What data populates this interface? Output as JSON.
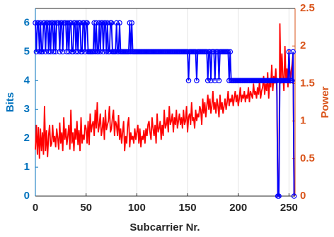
{
  "chart_data": {
    "type": "line",
    "xlabel": "Subcarrier Nr.",
    "ylabel": "Bits",
    "y2label": "Power",
    "y_axis_color": "#0072bd",
    "y2_axis_color": "#d95319",
    "grid": "x",
    "xlim": [
      0,
      256
    ],
    "xticks": [
      0,
      50,
      100,
      150,
      200,
      250
    ],
    "ylim": [
      0,
      6.5
    ],
    "yticks": [
      0,
      1,
      2,
      3,
      4,
      5,
      6
    ],
    "y2lim": [
      0,
      2.5
    ],
    "y2ticks": [
      0,
      0.5,
      1,
      1.5,
      2,
      2.5
    ],
    "x": [
      0,
      1,
      2,
      3,
      4,
      5,
      6,
      7,
      8,
      9,
      10,
      11,
      12,
      13,
      14,
      15,
      16,
      17,
      18,
      19,
      20,
      21,
      22,
      23,
      24,
      25,
      26,
      27,
      28,
      29,
      30,
      31,
      32,
      33,
      34,
      35,
      36,
      37,
      38,
      39,
      40,
      41,
      42,
      43,
      44,
      45,
      46,
      47,
      48,
      49,
      50,
      51,
      52,
      53,
      54,
      55,
      56,
      57,
      58,
      59,
      60,
      61,
      62,
      63,
      64,
      65,
      66,
      67,
      68,
      69,
      70,
      71,
      72,
      73,
      74,
      75,
      76,
      77,
      78,
      79,
      80,
      81,
      82,
      83,
      84,
      85,
      86,
      87,
      88,
      89,
      90,
      91,
      92,
      93,
      94,
      95,
      96,
      97,
      98,
      99,
      100,
      101,
      102,
      103,
      104,
      105,
      106,
      107,
      108,
      109,
      110,
      111,
      112,
      113,
      114,
      115,
      116,
      117,
      118,
      119,
      120,
      121,
      122,
      123,
      124,
      125,
      126,
      127,
      128,
      129,
      130,
      131,
      132,
      133,
      134,
      135,
      136,
      137,
      138,
      139,
      140,
      141,
      142,
      143,
      144,
      145,
      146,
      147,
      148,
      149,
      150,
      151,
      152,
      153,
      154,
      155,
      156,
      157,
      158,
      159,
      160,
      161,
      162,
      163,
      164,
      165,
      166,
      167,
      168,
      169,
      170,
      171,
      172,
      173,
      174,
      175,
      176,
      177,
      178,
      179,
      180,
      181,
      182,
      183,
      184,
      185,
      186,
      187,
      188,
      189,
      190,
      191,
      192,
      193,
      194,
      195,
      196,
      197,
      198,
      199,
      200,
      201,
      202,
      203,
      204,
      205,
      206,
      207,
      208,
      209,
      210,
      211,
      212,
      213,
      214,
      215,
      216,
      217,
      218,
      219,
      220,
      221,
      222,
      223,
      224,
      225,
      226,
      227,
      228,
      229,
      230,
      231,
      232,
      233,
      234,
      235,
      236,
      237,
      238,
      239,
      240,
      241,
      242,
      243,
      244,
      245,
      246,
      247,
      248,
      249,
      250,
      251,
      252,
      253,
      254,
      255
    ],
    "series": [
      {
        "color": "#0000ff",
        "marker": "o",
        "values": [
          6,
          5,
          6,
          6,
          5,
          6,
          5,
          5,
          6,
          6,
          5,
          6,
          6,
          5,
          6,
          5,
          6,
          6,
          5,
          6,
          5,
          6,
          6,
          6,
          5,
          6,
          6,
          5,
          6,
          6,
          6,
          5,
          6,
          5,
          6,
          6,
          5,
          5,
          6,
          6,
          5,
          6,
          5,
          6,
          6,
          5,
          5,
          6,
          6,
          5,
          6,
          6,
          5,
          5,
          5,
          5,
          5,
          5,
          6,
          5,
          6,
          5,
          5,
          6,
          5,
          6,
          6,
          5,
          6,
          6,
          5,
          6,
          5,
          5,
          6,
          6,
          5,
          5,
          5,
          5,
          6,
          5,
          5,
          6,
          5,
          5,
          5,
          5,
          5,
          5,
          5,
          5,
          5,
          6,
          5,
          6,
          5,
          5,
          5,
          5,
          5,
          5,
          5,
          5,
          5,
          5,
          5,
          5,
          5,
          5,
          5,
          5,
          5,
          5,
          5,
          5,
          5,
          5,
          5,
          5,
          5,
          5,
          5,
          5,
          5,
          5,
          5,
          5,
          5,
          5,
          5,
          5,
          5,
          5,
          5,
          5,
          5,
          5,
          5,
          5,
          5,
          5,
          5,
          5,
          5,
          5,
          5,
          5,
          5,
          5,
          5,
          4,
          5,
          5,
          5,
          5,
          5,
          5,
          5,
          4,
          5,
          5,
          5,
          5,
          5,
          5,
          5,
          5,
          5,
          5,
          4,
          5,
          5,
          4,
          5,
          5,
          5,
          4,
          5,
          5,
          5,
          4,
          5,
          5,
          5,
          5,
          5,
          5,
          5,
          5,
          5,
          4,
          5,
          4,
          4,
          4,
          4,
          4,
          4,
          4,
          4,
          4,
          4,
          4,
          4,
          4,
          4,
          4,
          4,
          4,
          4,
          4,
          4,
          4,
          4,
          4,
          4,
          4,
          4,
          4,
          4,
          4,
          4,
          4,
          4,
          4,
          4,
          4,
          4,
          4,
          4,
          4,
          4,
          4,
          4,
          4,
          4,
          4,
          4,
          0,
          0,
          4,
          4,
          4,
          4,
          4,
          4,
          4,
          4,
          4,
          5,
          4,
          4,
          4,
          5,
          0
        ]
      },
      {
        "color": "#ff0000",
        "axis": "y2",
        "values": [
          0.62,
          0.95,
          0.55,
          0.92,
          0.5,
          0.9,
          0.6,
          0.85,
          0.55,
          1.2,
          0.6,
          0.88,
          0.52,
          0.8,
          0.95,
          0.66,
          0.7,
          0.95,
          0.72,
          0.8,
          0.65,
          0.9,
          0.78,
          0.62,
          0.98,
          0.7,
          0.85,
          0.6,
          1.05,
          0.75,
          0.9,
          0.68,
          0.8,
          0.95,
          0.62,
          1.15,
          0.7,
          0.85,
          0.6,
          0.9,
          0.75,
          1.0,
          0.68,
          0.88,
          0.6,
          1.05,
          0.7,
          0.82,
          0.75,
          0.95,
          0.9,
          0.7,
          1.0,
          0.68,
          1.1,
          0.85,
          0.95,
          1.0,
          0.8,
          1.15,
          0.9,
          1.25,
          0.85,
          0.95,
          1.1,
          0.8,
          0.9,
          1.05,
          0.75,
          1.15,
          0.88,
          0.95,
          1.0,
          1.2,
          0.85,
          0.9,
          1.05,
          1.15,
          0.8,
          1.0,
          0.95,
          0.8,
          1.08,
          0.75,
          0.9,
          0.7,
          0.85,
          1.0,
          0.6,
          0.8,
          0.7,
          0.95,
          1.05,
          0.65,
          0.85,
          0.75,
          0.8,
          0.7,
          0.9,
          0.75,
          0.85,
          0.95,
          0.7,
          0.9,
          0.65,
          0.8,
          0.75,
          0.88,
          0.7,
          0.9,
          0.8,
          0.95,
          1.0,
          0.85,
          0.75,
          1.05,
          0.9,
          0.8,
          0.95,
          0.7,
          1.1,
          0.85,
          0.9,
          1.0,
          0.75,
          0.95,
          0.8,
          1.15,
          0.9,
          0.95,
          1.05,
          0.85,
          1.2,
          0.95,
          1.0,
          1.1,
          0.85,
          1.05,
          0.95,
          1.15,
          0.9,
          1.0,
          1.1,
          0.95,
          1.05,
          0.9,
          1.15,
          0.95,
          1.0,
          1.2,
          0.85,
          1.05,
          1.1,
          0.95,
          1.25,
          1.0,
          1.05,
          0.9,
          1.15,
          1.0,
          1.1,
          1.05,
          1.2,
          1.15,
          0.95,
          1.3,
          1.1,
          1.25,
          1.05,
          1.2,
          1.35,
          1.15,
          1.3,
          1.1,
          1.2,
          1.4,
          1.15,
          1.25,
          1.1,
          1.3,
          1.2,
          1.05,
          1.35,
          1.15,
          1.25,
          1.1,
          1.2,
          1.3,
          1.15,
          1.25,
          1.4,
          1.2,
          1.3,
          1.25,
          1.35,
          1.2,
          1.3,
          1.4,
          1.25,
          1.35,
          1.2,
          1.3,
          1.45,
          1.25,
          1.35,
          1.3,
          1.4,
          1.25,
          1.35,
          1.3,
          1.45,
          1.25,
          1.4,
          1.35,
          1.3,
          1.5,
          1.35,
          1.4,
          1.3,
          1.45,
          1.35,
          1.55,
          1.3,
          1.4,
          1.45,
          1.6,
          1.35,
          1.5,
          1.4,
          1.65,
          1.3,
          1.55,
          1.45,
          1.75,
          1.4,
          1.6,
          1.5,
          1.7,
          1.4,
          0,
          0,
          2.3,
          1.5,
          1.9,
          1.6,
          1.4,
          2.0,
          1.55,
          1.7,
          1.45,
          1.95,
          1.5,
          1.65,
          1.75,
          1.9,
          0
        ]
      }
    ]
  }
}
